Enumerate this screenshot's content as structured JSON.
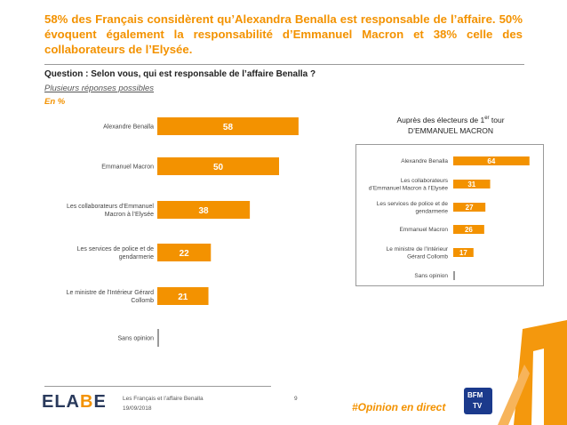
{
  "header": {
    "headline": "58% des Français considèrent qu’Alexandra Benalla est responsable de l’affaire. 50% évoquent également la responsabilité d’Emmanuel Macron et 38% celle des collaborateurs de l’Elysée."
  },
  "question": {
    "text": "Question : Selon vous, qui est responsable de l’affaire Benalla ?",
    "note": "Plusieurs réponses possibles",
    "unit": "En %"
  },
  "inset": {
    "title_line1_prefix": "Auprès des électeurs de 1",
    "title_line1_sup": "er",
    "title_line1_suffix": " tour",
    "title_line2": "D’EMMANUEL MACRON"
  },
  "footer": {
    "logo_left": "ELA",
    "logo_accent": "B",
    "logo_right": "E",
    "study": "Les Français et l’affaire Benalla",
    "date": "19/09/2018",
    "page": "9",
    "hashtag": "#Opinion en direct",
    "tv_top": "BFM",
    "tv_bottom": "TV"
  },
  "colors": {
    "bar": "#f39200",
    "accent": "#f39200",
    "zero_bar": "#9a9a9a"
  },
  "chart_data": [
    {
      "type": "bar",
      "orientation": "horizontal",
      "categories": [
        "Alexandre Benalla",
        "Emmanuel Macron",
        "Les collaborateurs d’Emmanuel Macron à l’Elysée",
        "Les services de police et de gendarmerie",
        "Le ministre de l’Intérieur Gérard Collomb",
        "Sans opinion"
      ],
      "labels": [
        [
          "Alexandre Benalla"
        ],
        [
          "Emmanuel Macron"
        ],
        [
          "Les collaborateurs d’Emmanuel",
          "Macron à l’Elysée"
        ],
        [
          "Les services de police et de",
          "gendarmerie"
        ],
        [
          "Le ministre de l’Intérieur Gérard",
          "Collomb"
        ],
        [
          "Sans opinion"
        ]
      ],
      "values": [
        58,
        50,
        38,
        22,
        21,
        0
      ],
      "value_labels": [
        "58",
        "50",
        "38",
        "22",
        "21",
        ""
      ],
      "xlim": [
        0,
        100
      ]
    },
    {
      "type": "bar",
      "orientation": "horizontal",
      "title": "Auprès des électeurs de 1er tour D’EMMANUEL MACRON",
      "categories": [
        "Alexandre Benalla",
        "Les collaborateurs d’Emmanuel Macron à l’Elysée",
        "Les services de police et de gendarmerie",
        "Emmanuel Macron",
        "Le ministre de l’Intérieur Gérard Collomb",
        "Sans opinion"
      ],
      "labels": [
        [
          "Alexandre Benalla"
        ],
        [
          "Les collaborateurs",
          "d’Emmanuel Macron à l’Elysée"
        ],
        [
          "Les services de police et de",
          "gendarmerie"
        ],
        [
          "Emmanuel Macron"
        ],
        [
          "Le ministre de l’Intérieur",
          "Gérard Collomb"
        ],
        [
          "Sans opinion"
        ]
      ],
      "values": [
        64,
        31,
        27,
        26,
        17,
        0
      ],
      "value_labels": [
        "64",
        "31",
        "27",
        "26",
        "17",
        ""
      ],
      "xlim": [
        0,
        100
      ]
    }
  ]
}
